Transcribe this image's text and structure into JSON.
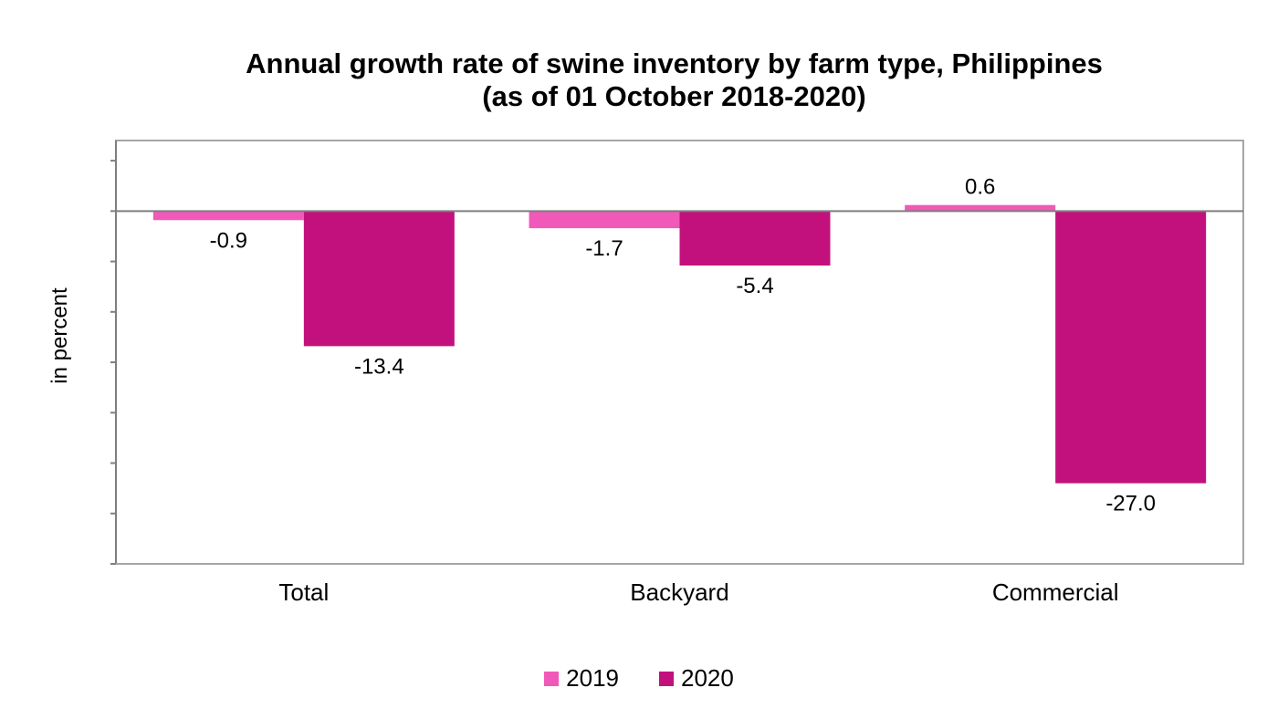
{
  "chart_data": {
    "type": "bar",
    "title_line1": "Annual growth rate of swine inventory by farm type, Philippines",
    "title_line2": "(as of 01 October 2018-2020)",
    "xlabel": "",
    "ylabel": "in percent",
    "categories": [
      "Total",
      "Backyard",
      "Commercial"
    ],
    "series": [
      {
        "name": "2019",
        "color": "#f159b8",
        "values": [
          -0.9,
          -1.7,
          0.6
        ],
        "labels": [
          "-0.9",
          "-1.7",
          "0.6"
        ]
      },
      {
        "name": "2020",
        "color": "#c2117d",
        "values": [
          -13.4,
          -5.4,
          -27.0
        ],
        "labels": [
          "-13.4",
          "-5.4",
          "-27.0"
        ]
      }
    ],
    "ylim": [
      -35,
      7
    ],
    "tick_step": 5,
    "y_tick_labels_shown": false,
    "grid": false,
    "legend_position": "bottom"
  }
}
